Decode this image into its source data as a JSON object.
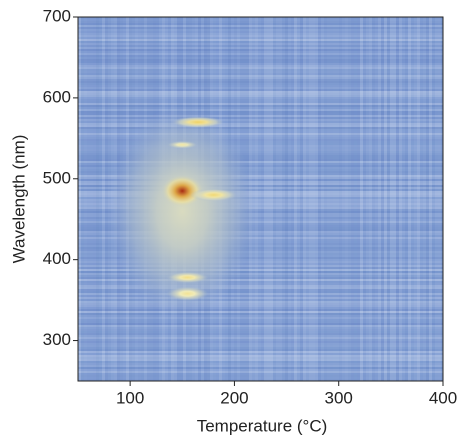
{
  "chart_data": {
    "type": "heatmap",
    "x_label": "Temperature (°C)",
    "y_label": "Wavelength (nm)",
    "xlim": [
      50,
      400
    ],
    "xticks": [
      100,
      200,
      300,
      400
    ],
    "ylim": [
      250,
      700
    ],
    "yticks": [
      300,
      400,
      500,
      600,
      700
    ],
    "background_color": "#88a3d6",
    "colormap": [
      "#88a3d6",
      "#f4eeb8",
      "#f0cc50",
      "#a82a12"
    ],
    "spots": [
      {
        "x": 150,
        "y": 460,
        "width": 140,
        "height": 260,
        "value": 0.25
      },
      {
        "x": 165,
        "y": 570,
        "width": 50,
        "height": 14,
        "value": 0.6
      },
      {
        "x": 150,
        "y": 542,
        "width": 30,
        "height": 10,
        "value": 0.4
      },
      {
        "x": 150,
        "y": 485,
        "width": 40,
        "height": 40,
        "value": 1.0
      },
      {
        "x": 180,
        "y": 480,
        "width": 45,
        "height": 16,
        "value": 0.55
      },
      {
        "x": 155,
        "y": 378,
        "width": 40,
        "height": 14,
        "value": 0.5
      },
      {
        "x": 155,
        "y": 358,
        "width": 40,
        "height": 18,
        "value": 0.45
      }
    ]
  }
}
